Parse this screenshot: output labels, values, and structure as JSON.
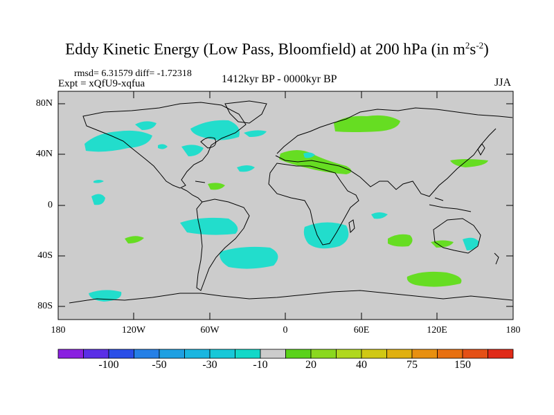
{
  "title": {
    "main": "Eddy Kinetic Energy (Low Pass, Bloomfield) at 200 hPa (in m",
    "sup1": "2",
    "mid": "s",
    "sup2": "-2",
    "end": ")"
  },
  "stats": "rmsd= 6.31579 diff= -1.72318",
  "expt": "Expt = xQfU9-xqfua",
  "period": "1412kyr BP - 0000kyr BP",
  "season": "JJA",
  "lat_labels": [
    "80N",
    "40N",
    "0",
    "40S",
    "80S"
  ],
  "lon_labels": [
    "180",
    "120W",
    "60W",
    "0",
    "60E",
    "120E",
    "180"
  ],
  "colorbar": {
    "colors": [
      "#8a20e0",
      "#5a2ee6",
      "#2a4ee8",
      "#2580e6",
      "#1ea0e2",
      "#19b6e0",
      "#17c8d8",
      "#12d8c8",
      "#cccccc",
      "#5ad21a",
      "#8ad81e",
      "#b0d81e",
      "#d0c814",
      "#e0b010",
      "#e89010",
      "#e87010",
      "#e45016",
      "#e02a18"
    ],
    "labels": [
      "-100",
      "-50",
      "-30",
      "-10",
      "20",
      "40",
      "75",
      "150"
    ]
  },
  "colors": {
    "ocean_bg": "#cccccc",
    "positive": "#66dd22",
    "negative": "#22ddcc",
    "coast": "#000000"
  }
}
